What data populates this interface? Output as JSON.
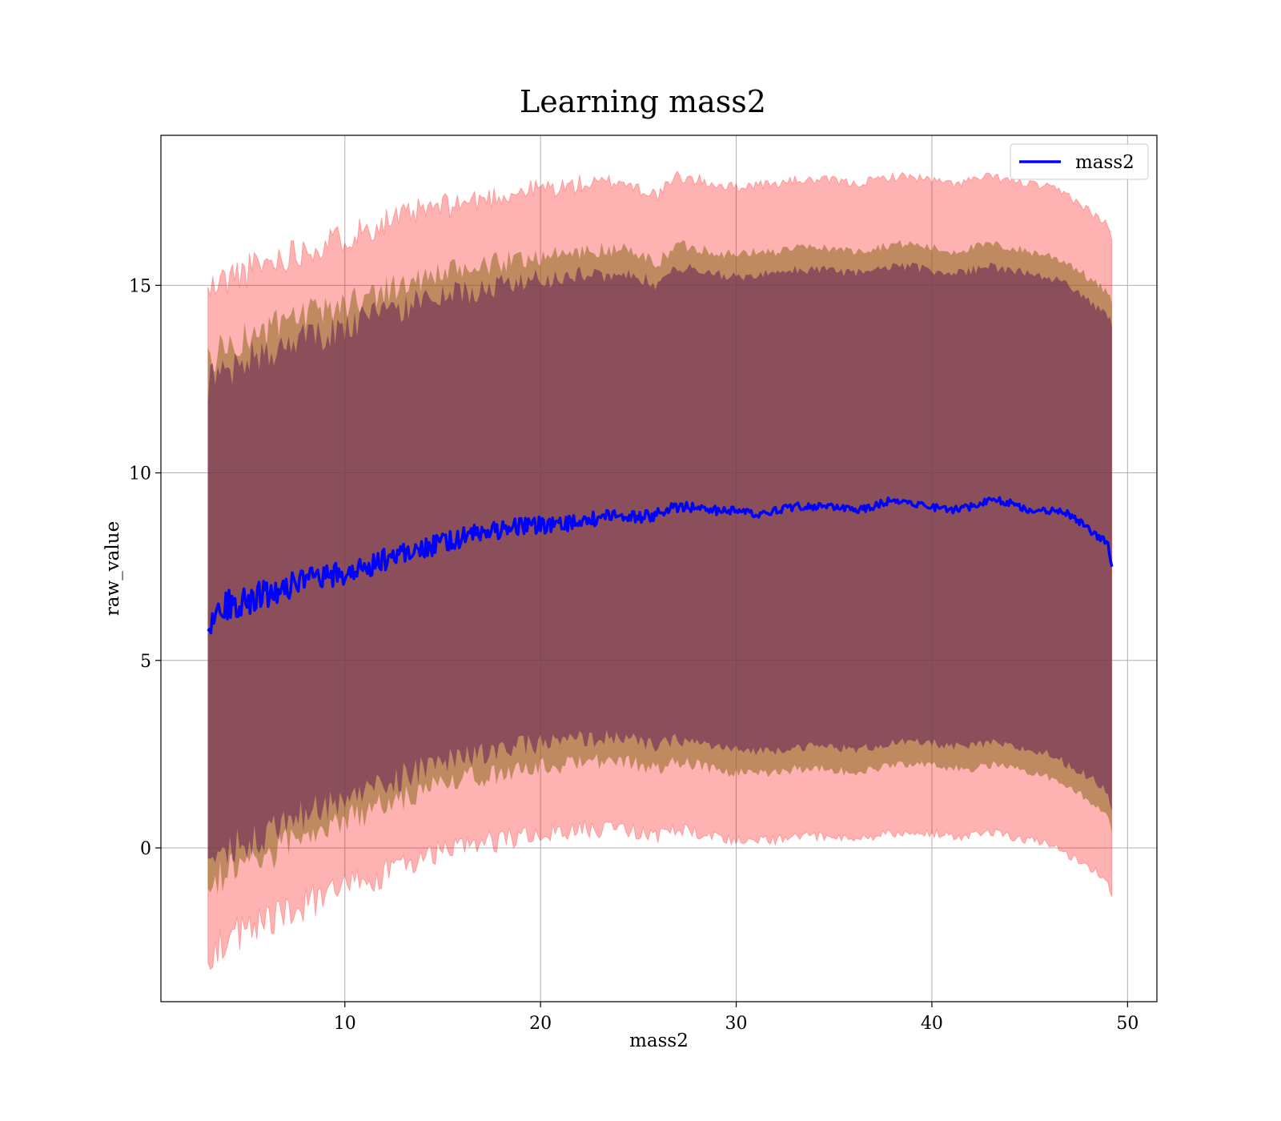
{
  "chart_data": {
    "type": "line",
    "title": "Learning mass2",
    "xlabel": "mass2",
    "ylabel": "raw_value",
    "xlim": [
      0.6,
      51.5
    ],
    "ylim": [
      -4.1,
      19.0
    ],
    "xticks": [
      10,
      20,
      30,
      40,
      50
    ],
    "yticks": [
      0,
      5,
      10,
      15
    ],
    "grid": true,
    "legend": {
      "placement": "top-right",
      "entries": [
        "mass2"
      ]
    },
    "colors": {
      "line": "#0000ff",
      "band_outer": "#ff0000",
      "band_middle": "#8b6a1e",
      "band_inner": "#6b2c5a",
      "grid": "#b0b0b0"
    },
    "series": [
      {
        "name": "mass2",
        "x": [
          3,
          4,
          5,
          6,
          7,
          8,
          9,
          10,
          11,
          12,
          13,
          14,
          15,
          16,
          17,
          18,
          19,
          20,
          21,
          22,
          23,
          24,
          25,
          26,
          27,
          28,
          29,
          30,
          31,
          32,
          33,
          34,
          35,
          36,
          37,
          38,
          39,
          40,
          41,
          42,
          43,
          44,
          45,
          46,
          47,
          48,
          49,
          49.2
        ],
        "y": [
          6.0,
          6.5,
          6.6,
          6.8,
          7.0,
          7.1,
          7.2,
          7.3,
          7.5,
          7.7,
          7.9,
          8.0,
          8.1,
          8.3,
          8.4,
          8.5,
          8.6,
          8.6,
          8.6,
          8.7,
          8.8,
          8.9,
          8.8,
          8.9,
          9.1,
          9.1,
          9.0,
          9.0,
          8.9,
          9.0,
          9.1,
          9.1,
          9.1,
          9.0,
          9.1,
          9.3,
          9.2,
          9.1,
          9.0,
          9.1,
          9.3,
          9.2,
          9.0,
          9.0,
          8.9,
          8.5,
          8.1,
          7.5
        ],
        "band_outer": {
          "upper": [
            14.8,
            15.2,
            15.4,
            15.6,
            15.8,
            16.0,
            16.1,
            16.3,
            16.5,
            16.7,
            16.8,
            17.0,
            17.1,
            17.2,
            17.3,
            17.4,
            17.5,
            17.6,
            17.6,
            17.7,
            17.7,
            17.8,
            17.6,
            17.4,
            17.9,
            17.8,
            17.7,
            17.6,
            17.7,
            17.7,
            17.8,
            17.8,
            17.8,
            17.7,
            17.8,
            17.9,
            17.9,
            17.8,
            17.7,
            17.8,
            17.9,
            17.8,
            17.7,
            17.6,
            17.4,
            17.0,
            16.6,
            16.2
          ],
          "lower": [
            -2.8,
            -2.4,
            -2.2,
            -2.0,
            -1.7,
            -1.5,
            -1.3,
            -1.1,
            -0.9,
            -0.7,
            -0.5,
            -0.3,
            -0.1,
            0.0,
            0.1,
            0.2,
            0.3,
            0.4,
            0.4,
            0.5,
            0.5,
            0.6,
            0.4,
            0.3,
            0.5,
            0.4,
            0.3,
            0.2,
            0.2,
            0.2,
            0.3,
            0.3,
            0.3,
            0.2,
            0.3,
            0.4,
            0.4,
            0.4,
            0.3,
            0.3,
            0.4,
            0.3,
            0.2,
            0.1,
            -0.2,
            -0.5,
            -0.9,
            -1.3
          ]
        },
        "band_middle": {
          "upper": [
            13.0,
            13.4,
            13.6,
            13.8,
            14.0,
            14.2,
            14.3,
            14.5,
            14.7,
            14.9,
            15.0,
            15.2,
            15.3,
            15.4,
            15.5,
            15.6,
            15.7,
            15.8,
            15.8,
            15.9,
            15.9,
            16.0,
            15.8,
            15.6,
            16.1,
            16.0,
            15.9,
            15.8,
            15.9,
            15.9,
            16.0,
            16.0,
            16.0,
            15.9,
            16.0,
            16.1,
            16.1,
            16.0,
            15.9,
            16.0,
            16.1,
            16.0,
            15.9,
            15.8,
            15.6,
            15.2,
            14.8,
            14.5
          ],
          "lower": [
            -1.0,
            -0.6,
            -0.4,
            -0.2,
            0.1,
            0.3,
            0.5,
            0.7,
            0.9,
            1.1,
            1.3,
            1.5,
            1.7,
            1.8,
            1.9,
            2.0,
            2.1,
            2.2,
            2.2,
            2.3,
            2.3,
            2.4,
            2.2,
            2.1,
            2.3,
            2.2,
            2.1,
            2.0,
            2.0,
            2.0,
            2.1,
            2.1,
            2.1,
            2.0,
            2.1,
            2.2,
            2.2,
            2.2,
            2.1,
            2.1,
            2.2,
            2.1,
            2.0,
            1.9,
            1.6,
            1.3,
            0.9,
            0.4
          ]
        },
        "band_inner": {
          "upper": [
            12.4,
            12.8,
            13.0,
            13.2,
            13.4,
            13.6,
            13.7,
            13.9,
            14.1,
            14.3,
            14.4,
            14.6,
            14.7,
            14.8,
            14.9,
            15.0,
            15.1,
            15.2,
            15.2,
            15.3,
            15.3,
            15.4,
            15.2,
            15.0,
            15.5,
            15.4,
            15.3,
            15.2,
            15.3,
            15.3,
            15.4,
            15.4,
            15.4,
            15.3,
            15.4,
            15.5,
            15.5,
            15.4,
            15.3,
            15.4,
            15.5,
            15.4,
            15.3,
            15.2,
            15.0,
            14.6,
            14.2,
            13.9
          ],
          "lower": [
            -0.4,
            0.0,
            0.2,
            0.4,
            0.7,
            0.9,
            1.1,
            1.3,
            1.5,
            1.7,
            1.9,
            2.1,
            2.3,
            2.4,
            2.5,
            2.6,
            2.7,
            2.8,
            2.8,
            2.9,
            2.9,
            3.0,
            2.8,
            2.7,
            2.9,
            2.8,
            2.7,
            2.6,
            2.6,
            2.6,
            2.7,
            2.7,
            2.7,
            2.6,
            2.7,
            2.8,
            2.8,
            2.8,
            2.7,
            2.7,
            2.8,
            2.7,
            2.6,
            2.5,
            2.2,
            1.9,
            1.5,
            1.0
          ]
        }
      }
    ]
  }
}
